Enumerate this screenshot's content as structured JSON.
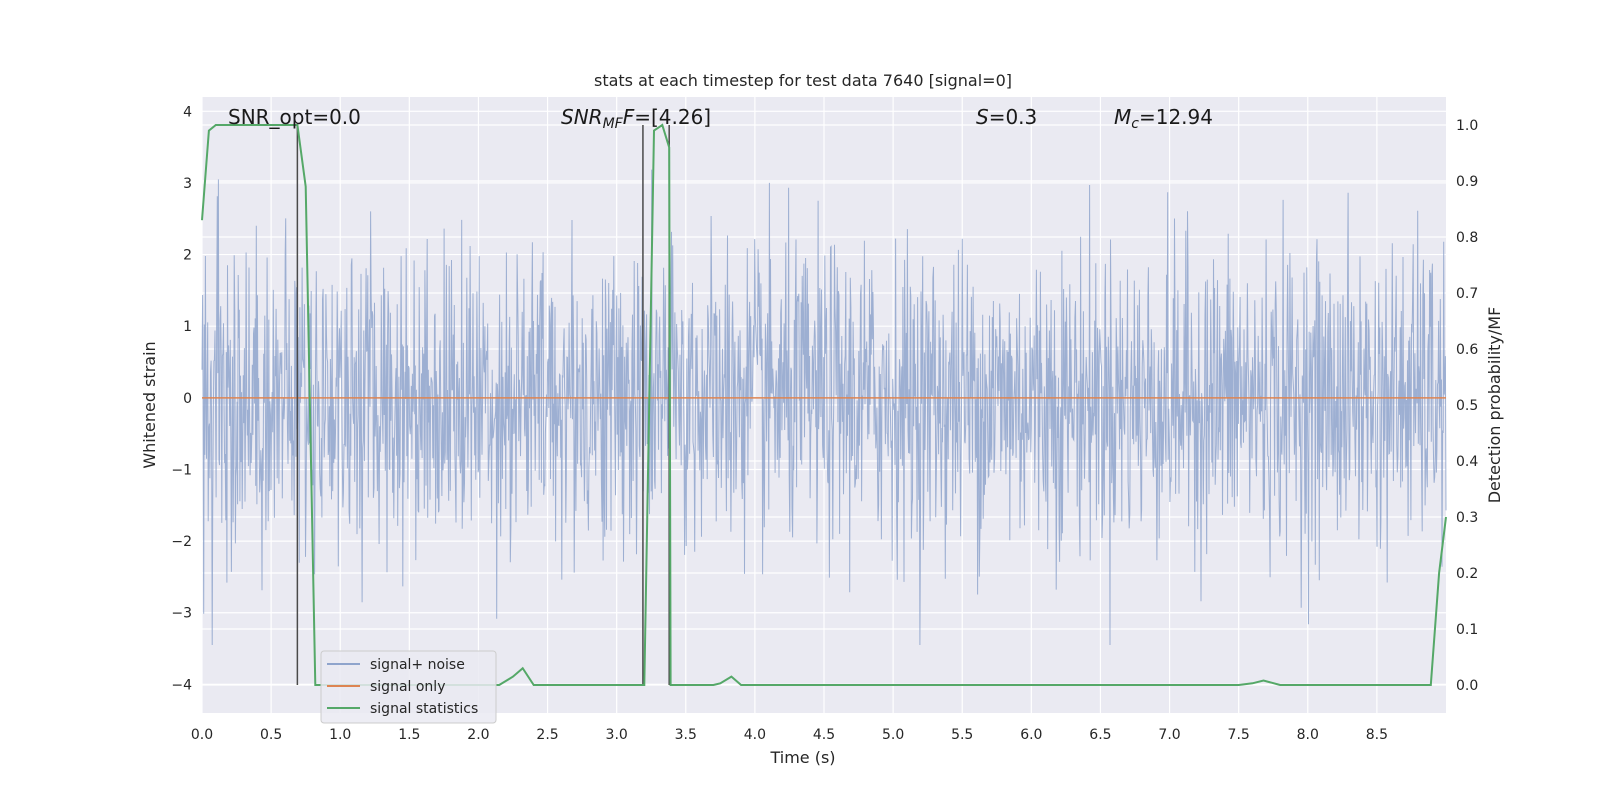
{
  "chart_data": {
    "type": "line",
    "title": "stats at each timestep for test data 7640 [signal=0]",
    "xlabel": "Time (s)",
    "ylabel_left": "Whitened strain",
    "ylabel_right": "Detection probability/MF",
    "xlim": [
      0.0,
      9.0
    ],
    "ylim_left": [
      -4.4,
      4.2
    ],
    "ylim_right": [
      -0.05,
      1.05
    ],
    "x_ticks": [
      "0.0",
      "0.5",
      "1.0",
      "1.5",
      "2.0",
      "2.5",
      "3.0",
      "3.5",
      "4.0",
      "4.5",
      "5.0",
      "5.5",
      "6.0",
      "6.5",
      "7.0",
      "7.5",
      "8.0",
      "8.5"
    ],
    "y_ticks_left": [
      "4",
      "3",
      "2",
      "1",
      "0",
      "−1",
      "−2",
      "−3",
      "−4"
    ],
    "y_ticks_right": [
      "1.0",
      "0.9",
      "0.8",
      "0.7",
      "0.6",
      "0.5",
      "0.4",
      "0.3",
      "0.2",
      "0.1",
      "0.0"
    ],
    "grid": true,
    "legend_position": "lower-left",
    "annotations": {
      "snr_opt": "SNR_opt=0.0",
      "snr_mf_main": "SNR",
      "snr_mf_sub": "MF",
      "snr_mf_value": "=[4.26]",
      "s_main": "S",
      "s_value": "=0.3",
      "mc_main": "M",
      "mc_sub": "c",
      "mc_value": "=12.94"
    },
    "vertical_lines_x": [
      0.69,
      3.19,
      3.38
    ],
    "series": [
      {
        "name": "signal+ noise",
        "color": "#8fa4cc",
        "description_values": "noise, approx. range -3.4 to 3.7 across the window",
        "envelope": {
          "x": [
            0.0,
            9.0
          ],
          "typical_abs": 1.5,
          "peak_abs": 3.7
        }
      },
      {
        "name": "signal only",
        "color": "#dd8452",
        "x": [
          0.0,
          9.0
        ],
        "y": [
          0.0,
          0.0
        ]
      },
      {
        "name": "signal statistics",
        "color": "#55a868",
        "axis": "right",
        "x": [
          0.0,
          0.05,
          0.1,
          0.2,
          0.3,
          0.4,
          0.5,
          0.6,
          0.69,
          0.75,
          0.82,
          0.9,
          1.5,
          2.0,
          2.15,
          2.25,
          2.32,
          2.4,
          2.6,
          3.0,
          3.18,
          3.2,
          3.27,
          3.33,
          3.38,
          3.39,
          3.45,
          3.7,
          3.75,
          3.83,
          3.9,
          5.0,
          6.0,
          7.0,
          7.5,
          7.6,
          7.68,
          7.8,
          8.0,
          8.5,
          8.89,
          8.95,
          9.0
        ],
        "y": [
          0.83,
          0.99,
          1.0,
          1.0,
          1.0,
          1.0,
          1.0,
          1.0,
          1.0,
          0.89,
          0.0,
          0.0,
          0.0,
          0.0,
          0.0,
          0.015,
          0.03,
          0.0,
          0.0,
          0.0,
          0.0,
          0.0,
          0.99,
          1.0,
          0.96,
          0.0,
          0.0,
          0.0,
          0.003,
          0.015,
          0.0,
          0.0,
          0.0,
          0.0,
          0.0,
          0.003,
          0.008,
          0.0,
          0.0,
          0.0,
          0.0,
          0.2,
          0.3
        ]
      }
    ]
  }
}
